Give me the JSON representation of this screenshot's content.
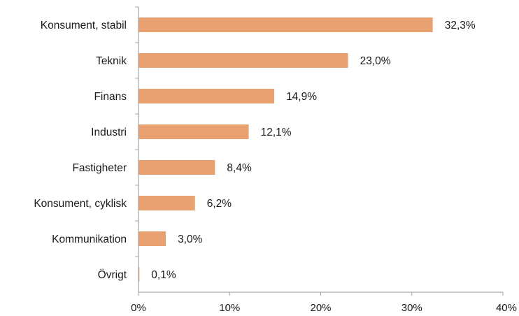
{
  "chart_data": {
    "type": "bar",
    "orientation": "horizontal",
    "categories": [
      "Konsument, stabil",
      "Teknik",
      "Finans",
      "Industri",
      "Fastigheter",
      "Konsument, cyklisk",
      "Kommunikation",
      "Övrigt"
    ],
    "values": [
      32.3,
      23.0,
      14.9,
      12.1,
      8.4,
      6.2,
      3.0,
      0.1
    ],
    "value_labels": [
      "32,3%",
      "23,0%",
      "14,9%",
      "12,1%",
      "8,4%",
      "6,2%",
      "3,0%",
      "0,1%"
    ],
    "xlim": [
      0,
      40
    ],
    "x_ticks": [
      0,
      10,
      20,
      30,
      40
    ],
    "x_tick_labels": [
      "0%",
      "10%",
      "20%",
      "30%",
      "40%"
    ],
    "title": "",
    "xlabel": "",
    "ylabel": "",
    "grid": false,
    "legend": "none",
    "bar_color": "#E9A172",
    "axis_color": "#a6a6a6"
  }
}
